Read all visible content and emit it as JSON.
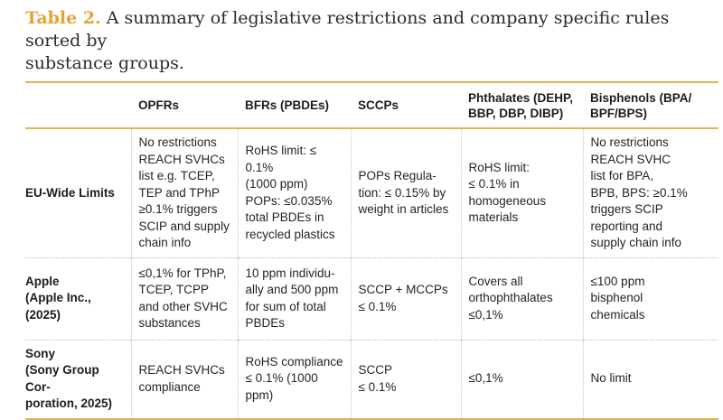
{
  "caption": {
    "label": "Table 2.",
    "text": " A summary of legislative restrictions and company specific rules sorted by\nsubstance groups."
  },
  "colors": {
    "accent_gold_text": "#E2A438",
    "rule_gold": "#E3B44C",
    "row_divider_gray": "#B5B5B5",
    "body_text": "#242424"
  },
  "table": {
    "columns": [
      "OPFRs",
      "BFRs (PBDEs)",
      "SCCPs",
      "Phthalates (DEHP,\nBBP, DBP, DIBP)",
      "Bisphenols (BPA/\nBPF/BPS)"
    ],
    "rows": [
      {
        "header": "EU-Wide Limits",
        "cells": [
          "No restrictions\nREACH SVHCs\nlist e.g. TCEP,\nTEP and TPhP\n≥0.1% triggers\nSCIP and supply\nchain info",
          "RoHS limit: ≤ 0.1%\n(1000 ppm)\nPOPs: ≤0.035%\ntotal PBDEs in\nrecycled plastics",
          "POPs Regula-\ntion: ≤ 0.15% by\nweight in articles",
          "RoHS limit:\n≤ 0.1% in\nhomogeneous\nmaterials",
          "No restrictions\nREACH SVHC\nlist for BPA,\nBPB, BPS: ≥0.1%\ntriggers SCIP\nreporting and\nsupply chain info"
        ]
      },
      {
        "header": "Apple\n(Apple Inc.,\n(2025)",
        "cells": [
          "≤0,1% for TPhP,\nTCEP, TCPP\nand other SVHC\nsubstances",
          "10 ppm individu-\nally and 500 ppm\nfor sum of total\nPBDEs",
          "SCCP + MCCPs\n≤ 0.1%",
          "Covers all\northophthalates\n≤0,1%",
          "≤100 ppm\nbisphenol\nchemicals"
        ]
      },
      {
        "header": "Sony\n(Sony Group Cor-\nporation, 2025)",
        "cells": [
          "REACH SVHCs\ncompliance",
          "RoHS compliance\n≤ 0.1% (1000 ppm)",
          "SCCP\n≤ 0.1%",
          "≤0,1%",
          "No limit"
        ]
      }
    ]
  }
}
